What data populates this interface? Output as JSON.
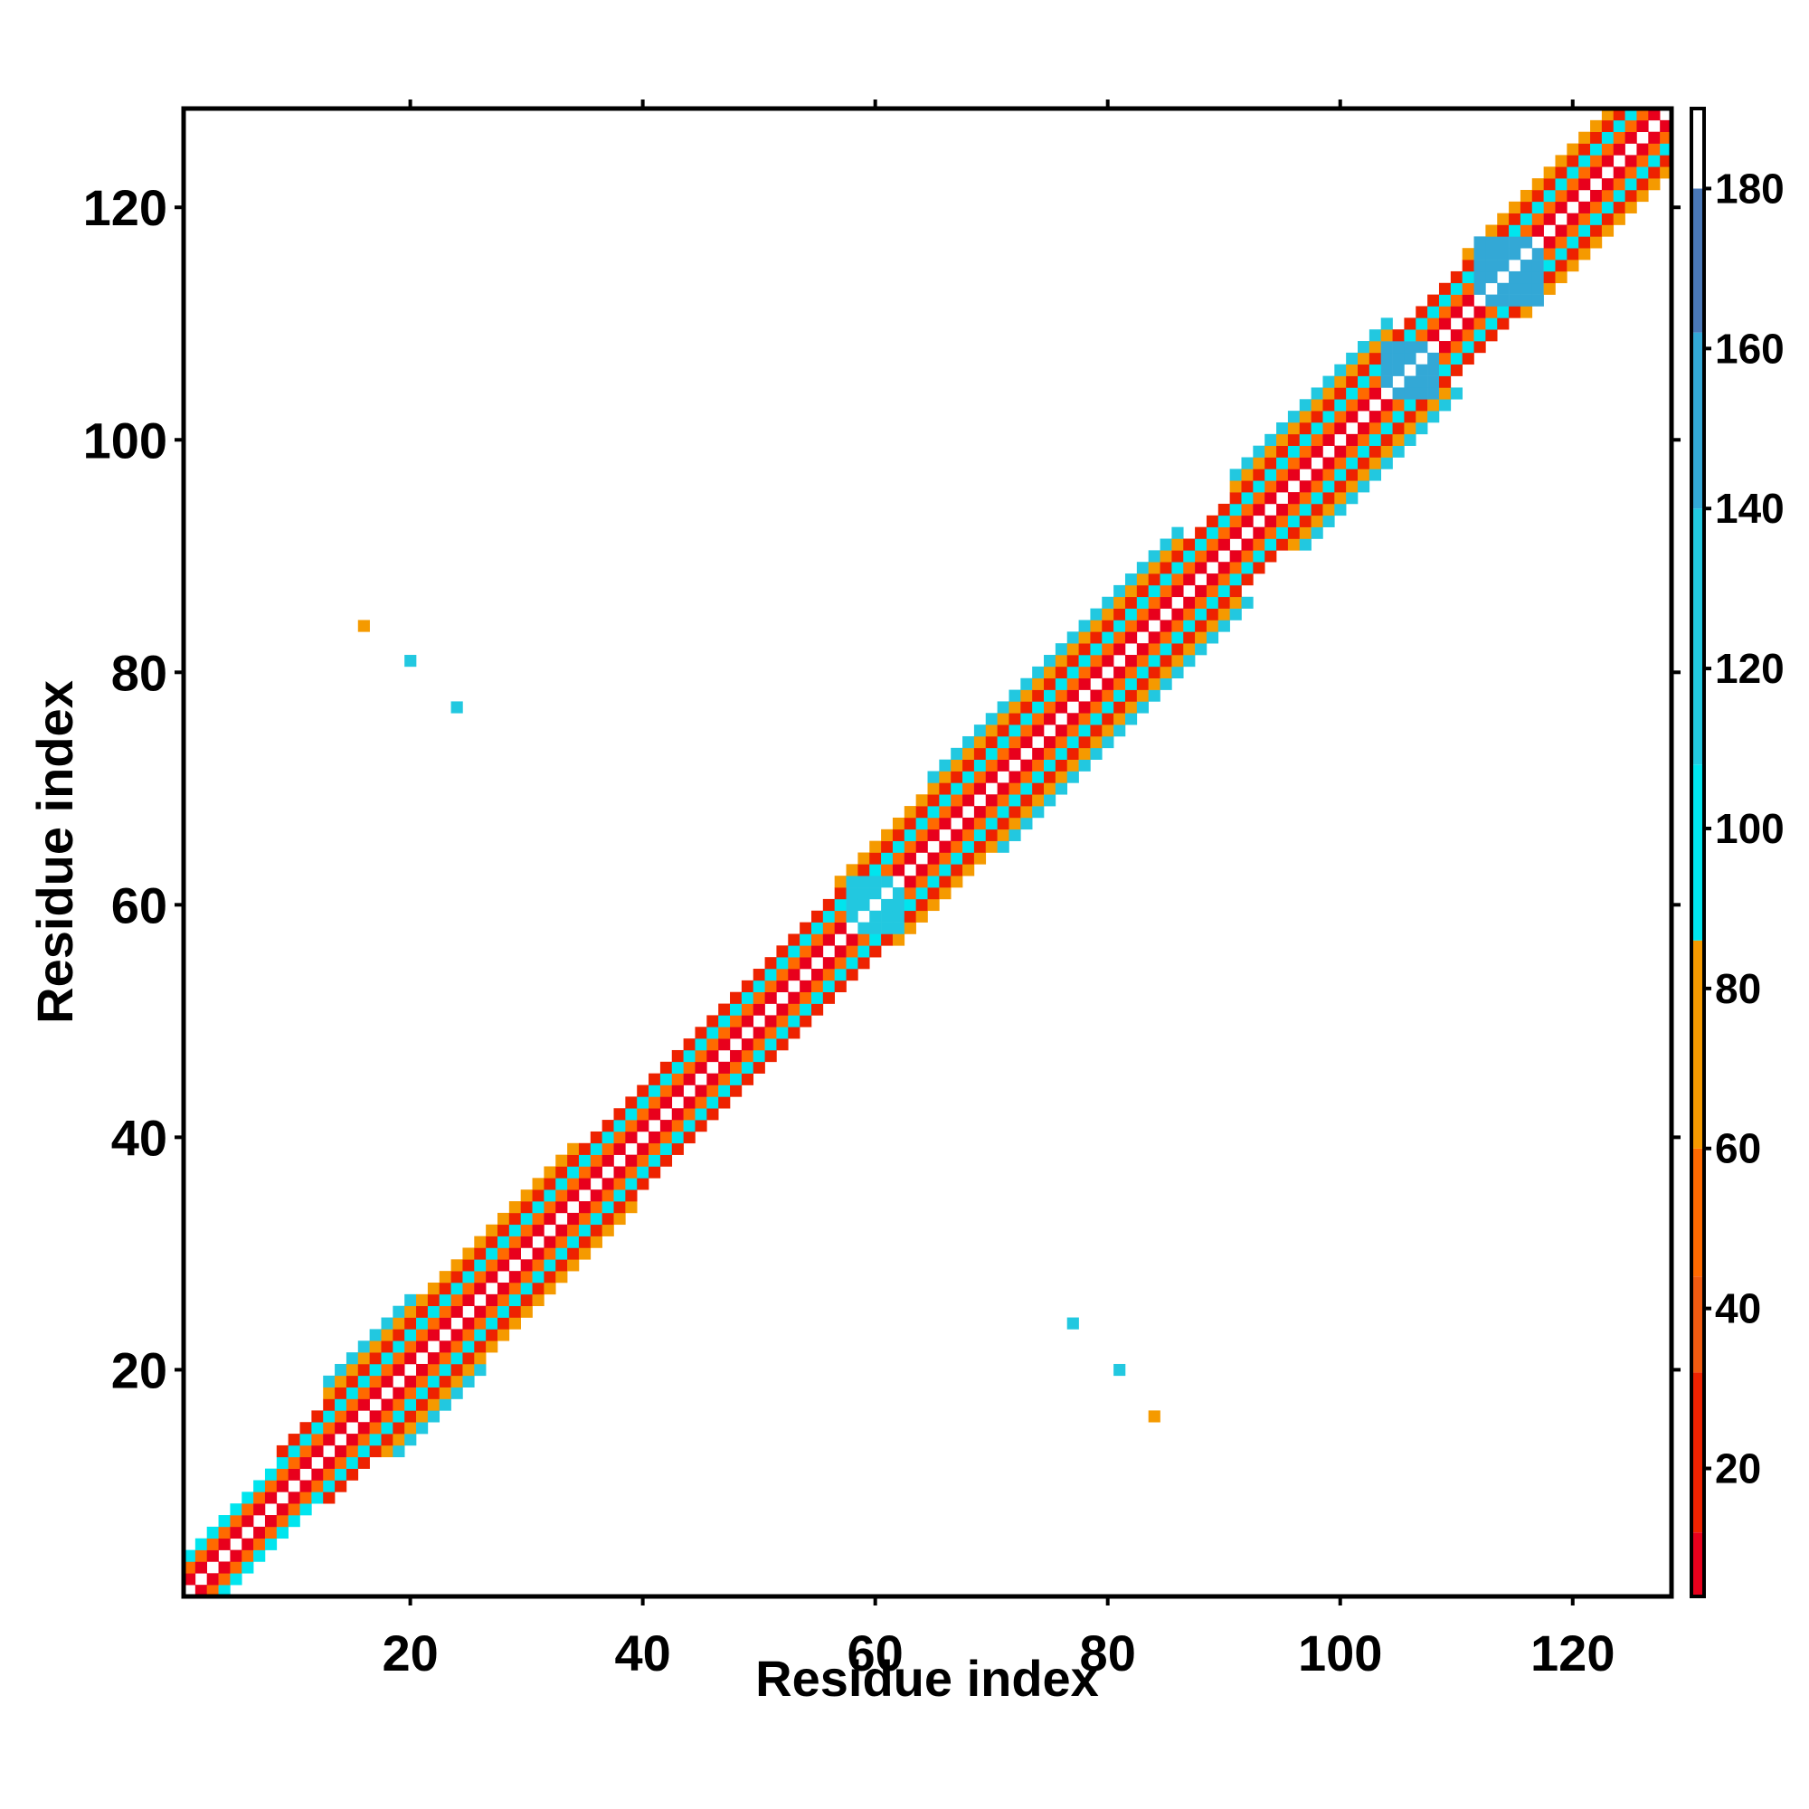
{
  "chart_data": {
    "type": "heatmap",
    "title": "",
    "xlabel": "Residue index",
    "ylabel": "Residue index",
    "xlim": [
      0.5,
      128.5
    ],
    "ylim": [
      0.5,
      128.5
    ],
    "xticks": [
      20,
      40,
      60,
      80,
      100,
      120
    ],
    "yticks": [
      20,
      40,
      60,
      80,
      100,
      120
    ],
    "n_residues": 128,
    "colorbar": {
      "range": [
        4,
        190
      ],
      "ticks": [
        20,
        40,
        60,
        80,
        100,
        120,
        140,
        160,
        180
      ],
      "bands": [
        {
          "from": 4,
          "to": 12,
          "color": "#e8001c"
        },
        {
          "from": 12,
          "to": 32,
          "color": "#ee2200"
        },
        {
          "from": 32,
          "to": 44,
          "color": "#f05a10"
        },
        {
          "from": 44,
          "to": 60,
          "color": "#ff6a00"
        },
        {
          "from": 60,
          "to": 86,
          "color": "#f59a00"
        },
        {
          "from": 86,
          "to": 108,
          "color": "#00e5ee"
        },
        {
          "from": 108,
          "to": 140,
          "color": "#22c8e0"
        },
        {
          "from": 140,
          "to": 162,
          "color": "#33a8d6"
        },
        {
          "from": 162,
          "to": 180,
          "color": "#4a78b8"
        },
        {
          "from": 180,
          "to": 190,
          "color": "#ffffff"
        }
      ]
    },
    "diagonal_band": {
      "description": "Symmetric contact band along diagonal",
      "segments": [
        {
          "from": 1,
          "to": 8,
          "max_offset": 3
        },
        {
          "from": 9,
          "to": 12,
          "max_offset": 4
        },
        {
          "from": 13,
          "to": 20,
          "max_offset": 6
        },
        {
          "from": 21,
          "to": 34,
          "max_offset": 5
        },
        {
          "from": 35,
          "to": 56,
          "max_offset": 4
        },
        {
          "from": 57,
          "to": 64,
          "max_offset": 5
        },
        {
          "from": 65,
          "to": 86,
          "max_offset": 6
        },
        {
          "from": 87,
          "to": 90,
          "max_offset": 4
        },
        {
          "from": 91,
          "to": 104,
          "max_offset": 6
        },
        {
          "from": 105,
          "to": 110,
          "max_offset": 4
        },
        {
          "from": 111,
          "to": 128,
          "max_offset": 5
        }
      ],
      "offset_pattern": [
        {
          "offset": 1,
          "value": 5
        },
        {
          "offset": 2,
          "value": 55
        },
        {
          "offset": 3,
          "value": 95
        },
        {
          "offset": 4,
          "value": 20
        },
        {
          "offset": 5,
          "value": 70
        },
        {
          "offset": 6,
          "value": 110
        }
      ],
      "special_blocks": [
        {
          "x": [
            58,
            62
          ],
          "y": [
            58,
            62
          ],
          "value": 130
        },
        {
          "x": [
            104,
            108
          ],
          "y": [
            104,
            108
          ],
          "value": 140
        },
        {
          "x": [
            112,
            117
          ],
          "y": [
            112,
            117
          ],
          "value": 150
        }
      ]
    },
    "off_diagonal_points": [
      {
        "x": 16,
        "y": 84,
        "value": 72
      },
      {
        "x": 20,
        "y": 81,
        "value": 110
      },
      {
        "x": 24,
        "y": 77,
        "value": 135
      },
      {
        "x": 77,
        "y": 24,
        "value": 135
      },
      {
        "x": 81,
        "y": 20,
        "value": 110
      },
      {
        "x": 84,
        "y": 16,
        "value": 72
      }
    ]
  }
}
